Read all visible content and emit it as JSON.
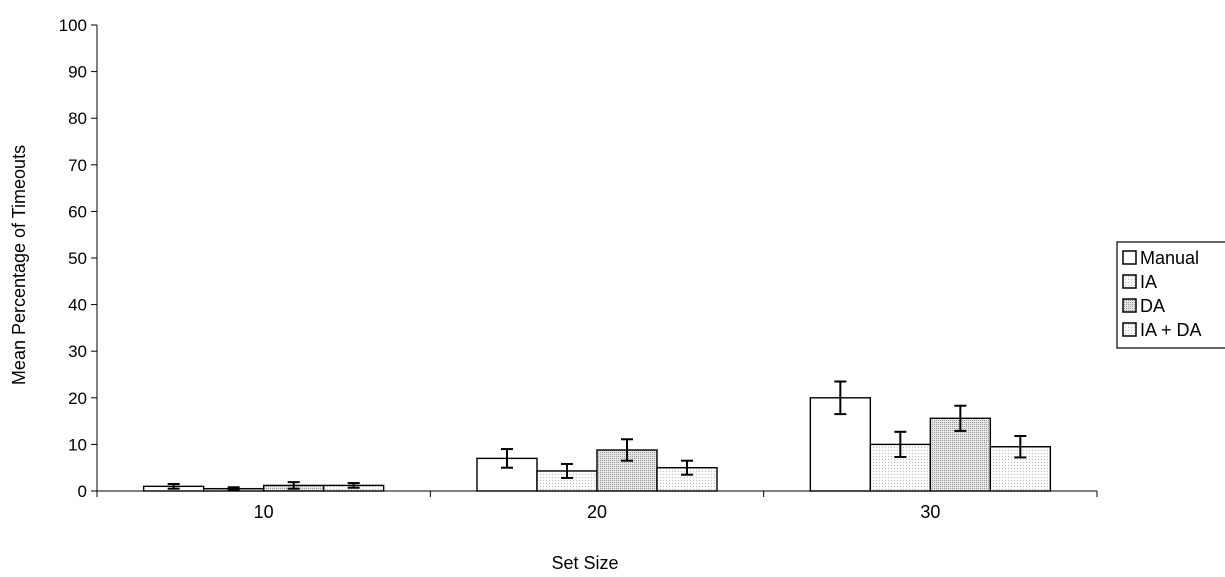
{
  "chart_data": {
    "type": "bar",
    "title": "",
    "xlabel": "Set Size",
    "ylabel": "Mean Percentage of Timeouts",
    "categories": [
      "10",
      "20",
      "30"
    ],
    "ylim": [
      0,
      100
    ],
    "yticks": [
      "0",
      "10",
      "20",
      "30",
      "40",
      "50",
      "60",
      "70",
      "80",
      "90",
      "100"
    ],
    "grid": false,
    "legend_position": "right",
    "series": [
      {
        "name": "Manual",
        "values": [
          1.0,
          7.0,
          20.0
        ],
        "errors": [
          0.5,
          2.0,
          3.5
        ],
        "fill": "#ffffff",
        "pattern": "none"
      },
      {
        "name": "IA",
        "values": [
          0.5,
          4.3,
          10.0
        ],
        "errors": [
          0.3,
          1.5,
          2.7
        ],
        "fill": "#f3f3f3",
        "pattern": "fine-dots"
      },
      {
        "name": "DA",
        "values": [
          1.2,
          8.8,
          15.6
        ],
        "errors": [
          0.7,
          2.3,
          2.7
        ],
        "fill": "#d9d9d9",
        "pattern": "dots"
      },
      {
        "name": "IA + DA",
        "values": [
          1.2,
          5.0,
          9.5
        ],
        "errors": [
          0.5,
          1.5,
          2.3
        ],
        "fill": "#ececec",
        "pattern": "fine-dots"
      }
    ]
  }
}
